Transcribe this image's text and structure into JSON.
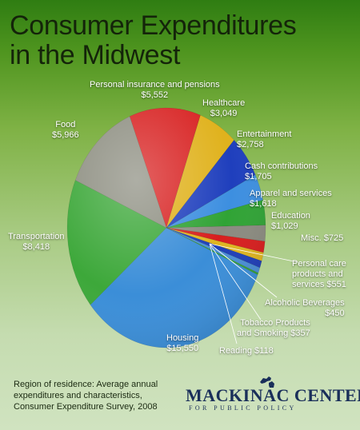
{
  "title": {
    "line1": "Consumer Expenditures",
    "line2": "in the Midwest"
  },
  "chart_data": {
    "type": "pie",
    "title": "Consumer Expenditures in the Midwest",
    "slices": [
      {
        "label": "Housing",
        "value": 15550,
        "value_text": "$15,550",
        "color": "#3b8ed8"
      },
      {
        "label": "Transportation",
        "value": 8418,
        "value_text": "$8,418",
        "color": "#3da83a"
      },
      {
        "label": "Food",
        "value": 5966,
        "value_text": "$5,966",
        "color": "#8e8f82"
      },
      {
        "label": "Personal insurance and pensions",
        "value": 5552,
        "value_text": "$5,552",
        "color": "#d82323"
      },
      {
        "label": "Healthcare",
        "value": 3049,
        "value_text": "$3,049",
        "color": "#e0b21d"
      },
      {
        "label": "Entertainment",
        "value": 2758,
        "value_text": "$2,758",
        "color": "#1f3fbd"
      },
      {
        "label": "Cash contributions",
        "value": 1705,
        "value_text": "$1,705",
        "color": "#3d8fe0"
      },
      {
        "label": "Apparel and services",
        "value": 1618,
        "value_text": "$1,618",
        "color": "#30a335"
      },
      {
        "label": "Education",
        "value": 1029,
        "value_text": "$1,029",
        "color": "#8b8b80"
      },
      {
        "label": "Misc.",
        "value": 725,
        "value_text": "$725",
        "color": "#d81e1e"
      },
      {
        "label": "Personal care products and services",
        "value": 551,
        "value_text": "$551",
        "color": "#e0b520"
      },
      {
        "label": "Alcoholic Beverages",
        "value": 450,
        "value_text": "$450",
        "color": "#1f3fb8"
      },
      {
        "label": "Tobacco Products and Smoking",
        "value": 357,
        "value_text": "$357",
        "color": "#4a8fd6"
      },
      {
        "label": "Reading",
        "value": 118,
        "value_text": "$118",
        "color": "#34a435"
      }
    ]
  },
  "labels": {
    "insurance": {
      "line1": "Personal insurance and pensions",
      "line2": "$5,552"
    },
    "healthcare": {
      "line1": "Healthcare",
      "line2": "$3,049"
    },
    "food": {
      "line1": "Food",
      "line2": "$5,966"
    },
    "entertainment": {
      "line1": "Entertainment",
      "line2": "$2,758"
    },
    "cash": {
      "line1": "Cash contributions",
      "line2": "$1,705"
    },
    "apparel": {
      "line1": "Apparel and services",
      "line2": "$1,618"
    },
    "transportation": {
      "line1": "Transportation",
      "line2": "$8,418"
    },
    "education": {
      "line1": "Education",
      "line2": "$1,029"
    },
    "misc": {
      "line1": "Misc.  $725"
    },
    "personal_care": {
      "line1": "Personal care",
      "line2": "products and",
      "line3": "services  $551"
    },
    "alcohol": {
      "line1": "Alcoholic Beverages",
      "line2": "$450"
    },
    "tobacco": {
      "line1": "Tobacco Products",
      "line2": "and Smoking  $357"
    },
    "housing": {
      "line1": "Housing",
      "line2": "$15,550"
    },
    "reading": {
      "line1": "Reading  $118"
    }
  },
  "footer": {
    "line1": "Region of residence: Average annual",
    "line2": "expenditures and characteristics,",
    "line3": "Consumer Expenditure Survey, 2008"
  },
  "logo": {
    "name": "MACKINAC CENTER",
    "tagline": "FOR PUBLIC POLICY"
  }
}
